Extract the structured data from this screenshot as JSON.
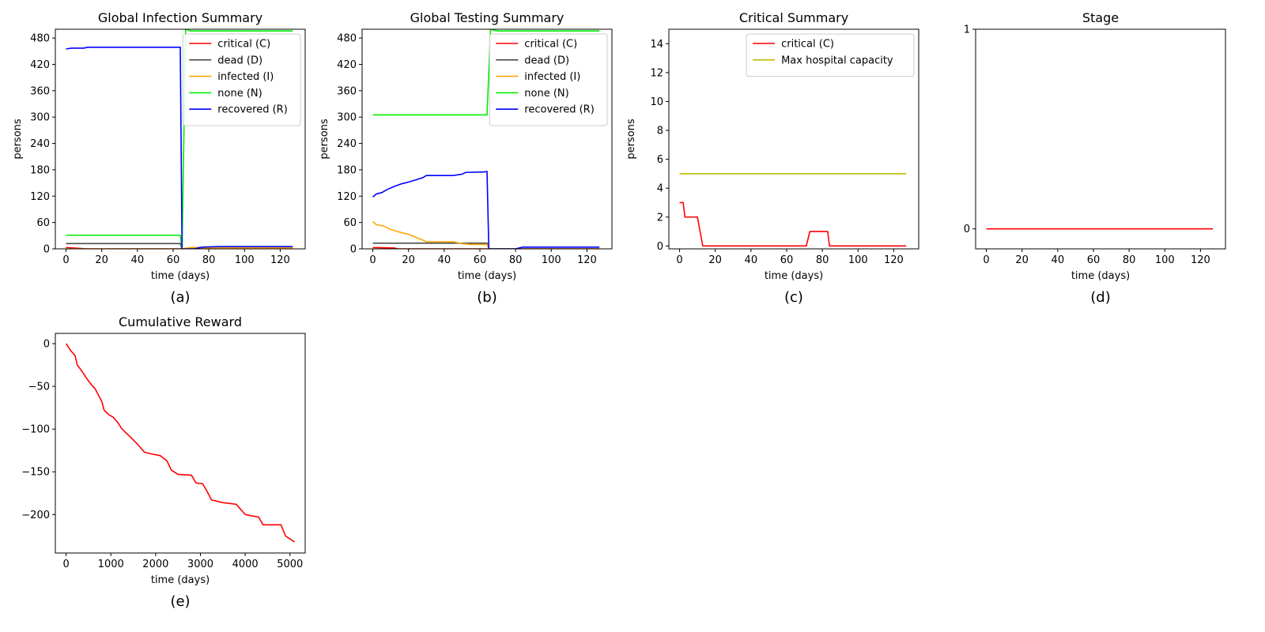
{
  "chart_data": [
    {
      "id": "a",
      "type": "line",
      "title": "Global Infection Summary",
      "xlabel": "time (days)",
      "ylabel": "persons",
      "caption": "(a)",
      "xlim": [
        -6,
        134
      ],
      "ylim": [
        0,
        500
      ],
      "xticks": [
        0,
        20,
        40,
        60,
        80,
        100,
        120
      ],
      "yticks": [
        0,
        60,
        120,
        180,
        240,
        300,
        360,
        420,
        480
      ],
      "legend_position": "top-right",
      "series": [
        {
          "name": "critical (C)",
          "color": "#ff0000",
          "points": [
            [
              0,
              3
            ],
            [
              4,
              2
            ],
            [
              12,
              0
            ],
            [
              64,
              0
            ],
            [
              65,
              0
            ],
            [
              80,
              0
            ],
            [
              127,
              0
            ]
          ]
        },
        {
          "name": "dead (D)",
          "color": "#4d4d4d",
          "points": [
            [
              0,
              12
            ],
            [
              64,
              12
            ],
            [
              65,
              0
            ],
            [
              127,
              0
            ]
          ]
        },
        {
          "name": "infected (I)",
          "color": "#ffa500",
          "points": [
            [
              0,
              0
            ],
            [
              64,
              0
            ],
            [
              65,
              0
            ],
            [
              70,
              3
            ],
            [
              76,
              3
            ],
            [
              80,
              2
            ],
            [
              127,
              2
            ]
          ]
        },
        {
          "name": "none (N)",
          "color": "#00ee00",
          "points": [
            [
              0,
              31
            ],
            [
              64,
              31
            ],
            [
              65,
              0
            ],
            [
              67,
              500
            ],
            [
              70,
              496
            ],
            [
              127,
              496
            ]
          ]
        },
        {
          "name": "recovered (R)",
          "color": "#0000ff",
          "points": [
            [
              0,
              455
            ],
            [
              3,
              457
            ],
            [
              10,
              457
            ],
            [
              12,
              459
            ],
            [
              40,
              459
            ],
            [
              64,
              459
            ],
            [
              65,
              0
            ],
            [
              72,
              0
            ],
            [
              76,
              4
            ],
            [
              85,
              5
            ],
            [
              127,
              5
            ]
          ]
        }
      ]
    },
    {
      "id": "b",
      "type": "line",
      "title": "Global Testing Summary",
      "xlabel": "time (days)",
      "ylabel": "persons",
      "caption": "(b)",
      "xlim": [
        -6,
        134
      ],
      "ylim": [
        0,
        500
      ],
      "xticks": [
        0,
        20,
        40,
        60,
        80,
        100,
        120
      ],
      "yticks": [
        0,
        60,
        120,
        180,
        240,
        300,
        360,
        420,
        480
      ],
      "legend_position": "top-right",
      "series": [
        {
          "name": "critical (C)",
          "color": "#ff0000",
          "points": [
            [
              0,
              3
            ],
            [
              12,
              2
            ],
            [
              14,
              0
            ],
            [
              64,
              0
            ],
            [
              65,
              0
            ],
            [
              127,
              0
            ]
          ]
        },
        {
          "name": "dead (D)",
          "color": "#4d4d4d",
          "points": [
            [
              0,
              13
            ],
            [
              64,
              13
            ],
            [
              65,
              0
            ],
            [
              127,
              0
            ]
          ]
        },
        {
          "name": "infected (I)",
          "color": "#ffa500",
          "points": [
            [
              0,
              62
            ],
            [
              2,
              55
            ],
            [
              6,
              52
            ],
            [
              10,
              44
            ],
            [
              15,
              38
            ],
            [
              20,
              33
            ],
            [
              25,
              25
            ],
            [
              28,
              20
            ],
            [
              30,
              16
            ],
            [
              45,
              16
            ],
            [
              50,
              12
            ],
            [
              55,
              10
            ],
            [
              64,
              10
            ],
            [
              65,
              0
            ],
            [
              127,
              0
            ]
          ]
        },
        {
          "name": "none (N)",
          "color": "#00ee00",
          "points": [
            [
              0,
              305
            ],
            [
              64,
              305
            ],
            [
              66,
              500
            ],
            [
              70,
              496
            ],
            [
              127,
              496
            ]
          ]
        },
        {
          "name": "recovered (R)",
          "color": "#0000ff",
          "points": [
            [
              0,
              118
            ],
            [
              2,
              125
            ],
            [
              5,
              128
            ],
            [
              8,
              135
            ],
            [
              12,
              142
            ],
            [
              16,
              148
            ],
            [
              20,
              152
            ],
            [
              24,
              157
            ],
            [
              28,
              162
            ],
            [
              30,
              167
            ],
            [
              45,
              167
            ],
            [
              50,
              170
            ],
            [
              52,
              174
            ],
            [
              62,
              175
            ],
            [
              64,
              176
            ],
            [
              65,
              0
            ],
            [
              80,
              0
            ],
            [
              84,
              4
            ],
            [
              127,
              4
            ]
          ]
        }
      ]
    },
    {
      "id": "c",
      "type": "line",
      "title": "Critical Summary",
      "xlabel": "time (days)",
      "ylabel": "persons",
      "caption": "(c)",
      "xlim": [
        -6,
        134
      ],
      "ylim": [
        -0.2,
        15
      ],
      "xticks": [
        0,
        20,
        40,
        60,
        80,
        100,
        120
      ],
      "yticks": [
        0,
        2,
        4,
        6,
        8,
        10,
        12,
        14
      ],
      "legend_position": "top-right",
      "series": [
        {
          "name": "critical (C)",
          "color": "#ff0000",
          "points": [
            [
              0,
              3
            ],
            [
              2,
              3
            ],
            [
              3,
              2
            ],
            [
              10,
              2
            ],
            [
              13,
              0
            ],
            [
              71,
              0
            ],
            [
              73,
              1
            ],
            [
              83,
              1
            ],
            [
              84,
              0
            ],
            [
              127,
              0
            ]
          ]
        },
        {
          "name": "Max hospital capacity",
          "color": "#bfbf00",
          "points": [
            [
              0,
              5
            ],
            [
              127,
              5
            ]
          ]
        }
      ]
    },
    {
      "id": "d",
      "type": "line",
      "title": "Stage",
      "xlabel": "time (days)",
      "ylabel": "",
      "caption": "(d)",
      "xlim": [
        -6,
        134
      ],
      "ylim": [
        -0.1,
        1
      ],
      "xticks": [
        0,
        20,
        40,
        60,
        80,
        100,
        120
      ],
      "yticks": [
        0,
        1
      ],
      "legend_position": "",
      "series": [
        {
          "color": "#ff0000",
          "points": [
            [
              0,
              0
            ],
            [
              127,
              0
            ]
          ]
        }
      ]
    },
    {
      "id": "e",
      "type": "line",
      "title": "Cumulative Reward",
      "xlabel": "time (days)",
      "ylabel": "",
      "caption": "(e)",
      "xlim": [
        -240,
        5340
      ],
      "ylim": [
        -245,
        12
      ],
      "xticks": [
        0,
        1000,
        2000,
        3000,
        4000,
        5000
      ],
      "yticks": [
        0,
        -50,
        -100,
        -150,
        -200
      ],
      "legend_position": "",
      "series": [
        {
          "color": "#ff0000",
          "points": [
            [
              0,
              0
            ],
            [
              100,
              -8
            ],
            [
              200,
              -14
            ],
            [
              250,
              -25
            ],
            [
              350,
              -32
            ],
            [
              450,
              -40
            ],
            [
              550,
              -47
            ],
            [
              650,
              -53
            ],
            [
              720,
              -60
            ],
            [
              800,
              -68
            ],
            [
              850,
              -78
            ],
            [
              950,
              -83
            ],
            [
              1050,
              -86
            ],
            [
              1150,
              -92
            ],
            [
              1250,
              -100
            ],
            [
              1350,
              -105
            ],
            [
              1450,
              -110
            ],
            [
              1600,
              -118
            ],
            [
              1750,
              -127
            ],
            [
              1900,
              -129
            ],
            [
              2100,
              -131
            ],
            [
              2250,
              -137
            ],
            [
              2350,
              -148
            ],
            [
              2500,
              -153
            ],
            [
              2800,
              -154
            ],
            [
              2900,
              -163
            ],
            [
              3050,
              -164
            ],
            [
              3150,
              -173
            ],
            [
              3250,
              -183
            ],
            [
              3500,
              -186
            ],
            [
              3800,
              -188
            ],
            [
              3900,
              -194
            ],
            [
              4000,
              -200
            ],
            [
              4300,
              -203
            ],
            [
              4400,
              -212
            ],
            [
              4800,
              -212
            ],
            [
              4900,
              -225
            ],
            [
              5100,
              -232
            ]
          ]
        }
      ]
    }
  ]
}
